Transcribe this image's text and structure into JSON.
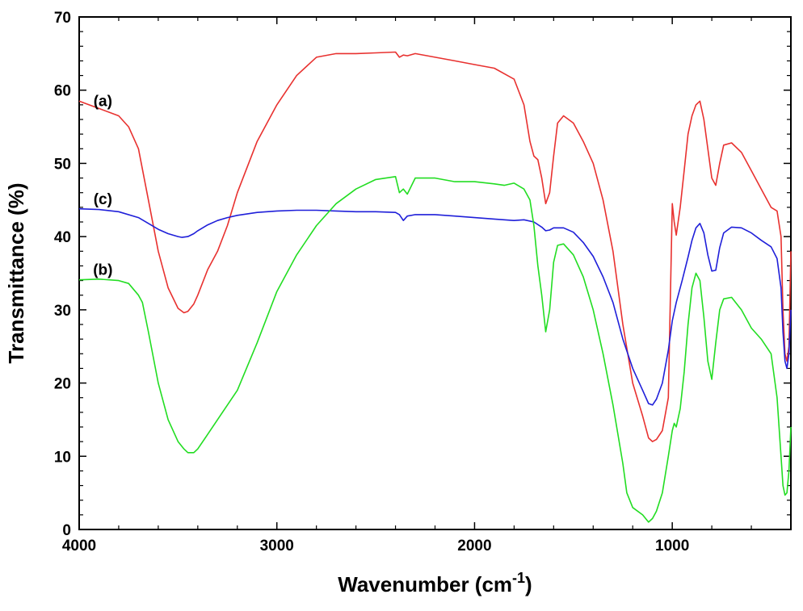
{
  "chart_data": {
    "type": "line",
    "title": "",
    "xlabel": "Wavenumber (cm",
    "xlabel_sup": "-1",
    "xlabel_end": ")",
    "ylabel": "Transmittance (%)",
    "xlim": [
      4000,
      400
    ],
    "ylim": [
      0,
      70
    ],
    "x_reversed": true,
    "grid": false,
    "x_ticks": [
      4000,
      3000,
      2000,
      1000
    ],
    "y_ticks": [
      0,
      10,
      20,
      30,
      40,
      50,
      60,
      70
    ],
    "annotations": [
      {
        "text": "(a)",
        "x": 3880,
        "y": 57.8
      },
      {
        "text": "(c)",
        "x": 3880,
        "y": 44.4
      },
      {
        "text": "(b)",
        "x": 3880,
        "y": 34.8
      }
    ],
    "series": [
      {
        "color": "#e8312f",
        "x": [
          4000,
          3900,
          3800,
          3750,
          3700,
          3650,
          3600,
          3550,
          3500,
          3470,
          3450,
          3420,
          3400,
          3350,
          3300,
          3250,
          3200,
          3100,
          3000,
          2900,
          2800,
          2700,
          2600,
          2500,
          2400,
          2380,
          2360,
          2340,
          2300,
          2200,
          2100,
          2000,
          1900,
          1800,
          1750,
          1720,
          1700,
          1680,
          1660,
          1640,
          1620,
          1600,
          1580,
          1550,
          1500,
          1450,
          1400,
          1350,
          1300,
          1250,
          1200,
          1150,
          1120,
          1100,
          1080,
          1050,
          1020,
          1000,
          990,
          980,
          960,
          940,
          920,
          900,
          880,
          860,
          840,
          820,
          800,
          780,
          760,
          740,
          700,
          650,
          600,
          550,
          500,
          470,
          450,
          440,
          430,
          420,
          410,
          400
        ],
        "y": [
          58.5,
          57.5,
          56.5,
          55,
          52,
          45,
          38,
          33,
          30.2,
          29.6,
          29.8,
          30.8,
          32,
          35.5,
          38,
          41.5,
          46,
          53,
          58,
          62,
          64.5,
          65,
          65,
          65.1,
          65.2,
          64.5,
          64.8,
          64.7,
          65,
          64.5,
          64,
          63.5,
          63,
          61.5,
          58,
          53,
          51,
          50.5,
          48,
          44.5,
          46,
          51,
          55.5,
          56.5,
          55.5,
          53,
          50,
          45,
          38,
          28,
          20,
          15.5,
          12.5,
          12,
          12.3,
          13.5,
          18,
          44.5,
          42,
          40.2,
          44,
          49,
          54,
          56.5,
          58,
          58.5,
          56,
          52,
          48,
          47,
          50,
          52.5,
          52.8,
          51.5,
          49,
          46.5,
          44,
          43.5,
          40,
          30,
          24,
          23,
          25,
          38
        ]
      },
      {
        "color": "#1f1fd9",
        "x": [
          4000,
          3900,
          3800,
          3700,
          3650,
          3600,
          3550,
          3500,
          3480,
          3450,
          3420,
          3400,
          3350,
          3300,
          3250,
          3200,
          3100,
          3000,
          2900,
          2800,
          2700,
          2600,
          2500,
          2400,
          2380,
          2360,
          2340,
          2300,
          2200,
          2100,
          2000,
          1900,
          1800,
          1750,
          1700,
          1660,
          1640,
          1620,
          1600,
          1550,
          1500,
          1450,
          1400,
          1350,
          1300,
          1250,
          1200,
          1150,
          1120,
          1100,
          1080,
          1050,
          1020,
          1000,
          980,
          950,
          920,
          900,
          880,
          860,
          840,
          820,
          800,
          780,
          760,
          740,
          700,
          650,
          600,
          550,
          500,
          470,
          450,
          440,
          430,
          420,
          410,
          400
        ],
        "y": [
          43.8,
          43.7,
          43.4,
          42.6,
          41.8,
          41,
          40.4,
          40,
          39.9,
          40,
          40.4,
          40.8,
          41.6,
          42.2,
          42.6,
          42.9,
          43.3,
          43.5,
          43.6,
          43.6,
          43.5,
          43.4,
          43.4,
          43.3,
          43,
          42.2,
          42.8,
          43,
          43,
          42.8,
          42.6,
          42.4,
          42.2,
          42.3,
          42,
          41.3,
          40.8,
          40.9,
          41.2,
          41.2,
          40.6,
          39.2,
          37.3,
          34.5,
          31,
          26,
          22,
          19,
          17.2,
          17,
          17.8,
          20,
          24.5,
          28.5,
          31,
          34,
          37.2,
          39.5,
          41.2,
          41.8,
          40.5,
          37.5,
          35.3,
          35.4,
          38.5,
          40.5,
          41.3,
          41.2,
          40.5,
          39.5,
          38.6,
          37,
          33,
          27,
          23,
          22,
          24,
          30
        ]
      },
      {
        "color": "#22dd22",
        "x": [
          4000,
          3900,
          3800,
          3750,
          3700,
          3680,
          3650,
          3600,
          3550,
          3500,
          3470,
          3450,
          3420,
          3400,
          3350,
          3300,
          3250,
          3200,
          3100,
          3000,
          2900,
          2800,
          2700,
          2600,
          2500,
          2400,
          2380,
          2360,
          2340,
          2300,
          2200,
          2100,
          2000,
          1900,
          1850,
          1800,
          1750,
          1720,
          1700,
          1680,
          1660,
          1640,
          1620,
          1600,
          1580,
          1550,
          1500,
          1450,
          1400,
          1350,
          1300,
          1250,
          1230,
          1200,
          1150,
          1120,
          1100,
          1080,
          1050,
          1020,
          1000,
          990,
          980,
          960,
          940,
          920,
          900,
          880,
          860,
          840,
          820,
          800,
          780,
          760,
          740,
          700,
          650,
          600,
          550,
          500,
          470,
          450,
          440,
          430,
          420,
          410,
          400
        ],
        "y": [
          34.1,
          34.2,
          34,
          33.6,
          32,
          31,
          27,
          20,
          15,
          12,
          11,
          10.5,
          10.5,
          11,
          13,
          15,
          17,
          19,
          25.5,
          32.5,
          37.5,
          41.5,
          44.5,
          46.5,
          47.8,
          48.2,
          46,
          46.5,
          45.8,
          48,
          48,
          47.5,
          47.5,
          47.2,
          47,
          47.3,
          46.5,
          45,
          41.5,
          36,
          32,
          27,
          30,
          36.5,
          38.8,
          39,
          37.5,
          34.5,
          30,
          24,
          17,
          9,
          5,
          3,
          2,
          1,
          1.5,
          2.5,
          5,
          10,
          13.5,
          14.5,
          14,
          16.5,
          21.5,
          28,
          33,
          35,
          34,
          29,
          23,
          20.5,
          25.5,
          30,
          31.5,
          31.7,
          30,
          27.5,
          26,
          24,
          18,
          10,
          6,
          4.7,
          5,
          8,
          14
        ]
      }
    ]
  }
}
